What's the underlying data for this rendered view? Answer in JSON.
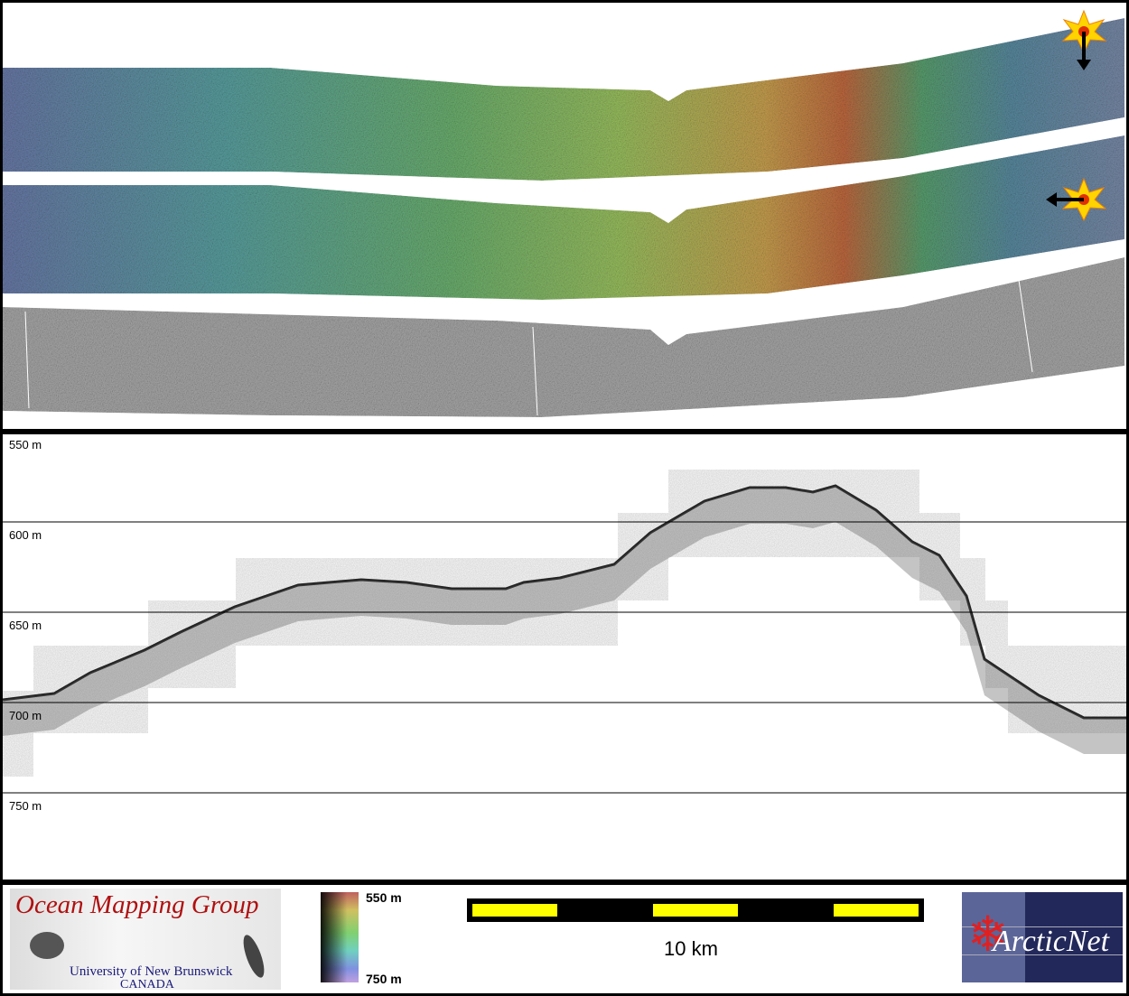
{
  "map_panel": {
    "swaths": [
      "bathymetry-swath-1",
      "bathymetry-swath-2",
      "backscatter-swath"
    ],
    "markers": [
      {
        "icon": "star-burst-icon",
        "arrow": "down"
      },
      {
        "icon": "star-burst-icon",
        "arrow": "left"
      }
    ]
  },
  "profile_panel": {
    "depth_labels": [
      "550 m",
      "600 m",
      "650 m",
      "700 m",
      "750 m"
    ]
  },
  "legend": {
    "logo_left": {
      "title": "Ocean Mapping Group",
      "line1": "University of New Brunswick",
      "line2": "CANADA"
    },
    "colorbar": {
      "top": "550 m",
      "bottom": "750 m",
      "colors": [
        "#c06060",
        "#d0c060",
        "#80d070",
        "#70d0c0",
        "#8090e0",
        "#c0a0e0"
      ]
    },
    "scale_bar": {
      "label": "10 km",
      "segment_colors": [
        "#ffff00",
        "#000000"
      ]
    },
    "logo_right": {
      "title": "ArcticNet",
      "colors": {
        "background": "#22285a",
        "leaf": "#e02020"
      }
    }
  }
}
